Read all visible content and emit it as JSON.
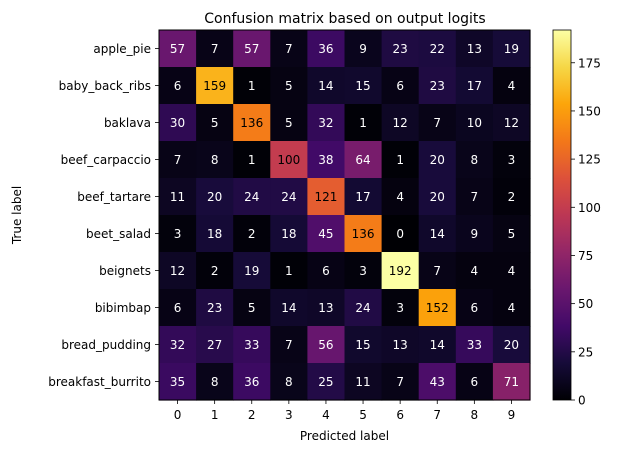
{
  "chart_data": {
    "type": "heatmap",
    "title": "Confusion matrix based on output logits",
    "xlabel": "Predicted label",
    "ylabel": "True label",
    "x_tick_labels": [
      "0",
      "1",
      "2",
      "3",
      "4",
      "5",
      "6",
      "7",
      "8",
      "9"
    ],
    "y_tick_labels": [
      "apple_pie",
      "baby_back_ribs",
      "baklava",
      "beef_carpaccio",
      "beef_tartare",
      "beet_salad",
      "beignets",
      "bibimbap",
      "bread_pudding",
      "breakfast_burrito"
    ],
    "matrix": [
      [
        57,
        7,
        57,
        7,
        36,
        9,
        23,
        22,
        13,
        19
      ],
      [
        6,
        159,
        1,
        5,
        14,
        15,
        6,
        23,
        17,
        4
      ],
      [
        30,
        5,
        136,
        5,
        32,
        1,
        12,
        7,
        10,
        12
      ],
      [
        7,
        8,
        1,
        100,
        38,
        64,
        1,
        20,
        8,
        3
      ],
      [
        11,
        20,
        24,
        24,
        121,
        17,
        4,
        20,
        7,
        2
      ],
      [
        3,
        18,
        2,
        18,
        45,
        136,
        0,
        14,
        9,
        5
      ],
      [
        12,
        2,
        19,
        1,
        6,
        3,
        192,
        7,
        4,
        4
      ],
      [
        6,
        23,
        5,
        14,
        13,
        24,
        3,
        152,
        6,
        4
      ],
      [
        32,
        27,
        33,
        7,
        56,
        15,
        13,
        14,
        33,
        20
      ],
      [
        35,
        8,
        36,
        8,
        25,
        11,
        7,
        43,
        6,
        71
      ]
    ],
    "colormap": "inferno",
    "value_range": [
      0,
      192
    ],
    "colorbar_ticks": [
      "0",
      "25",
      "50",
      "75",
      "100",
      "125",
      "150",
      "175"
    ],
    "colorbar_tick_values": [
      0,
      25,
      50,
      75,
      100,
      125,
      150,
      175
    ],
    "label_color_light": "#ffffff",
    "label_color_dark": "#000000"
  }
}
